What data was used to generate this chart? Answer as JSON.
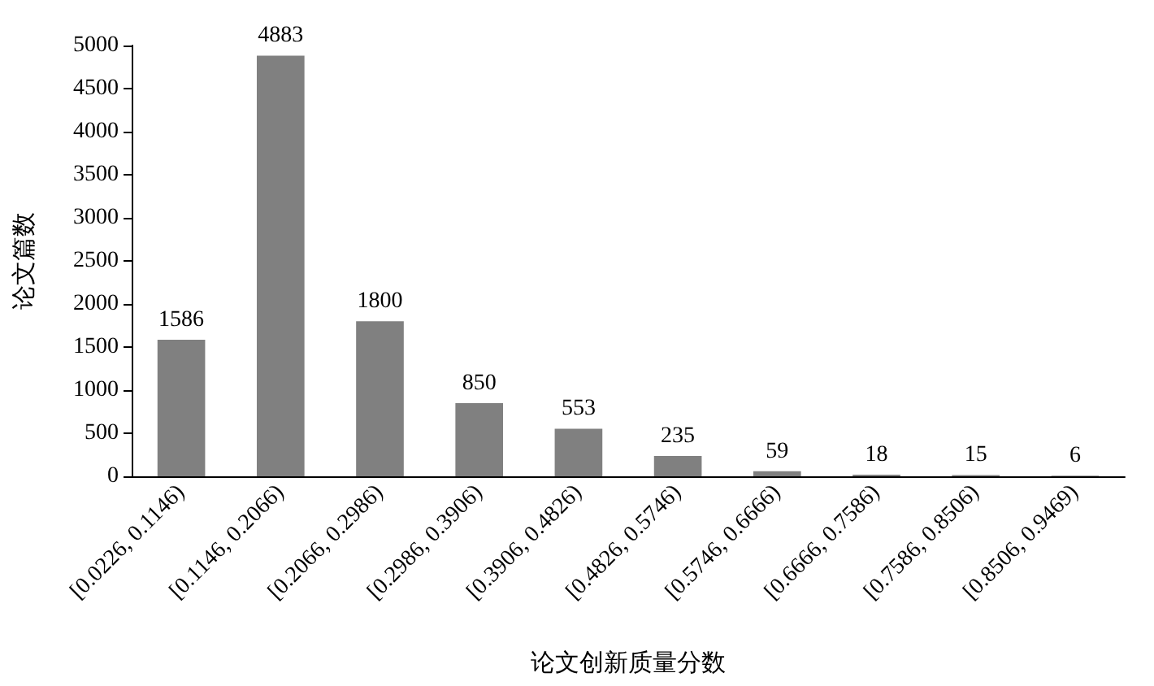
{
  "chart_data": {
    "type": "bar",
    "xlabel": "论文创新质量分数",
    "ylabel": "论文篇数",
    "categories": [
      "[0.0226, 0.1146)",
      "[0.1146, 0.2066)",
      "[0.2066, 0.2986)",
      "[0.2986, 0.3906)",
      "[0.3906, 0.4826)",
      "[0.4826, 0.5746)",
      "[0.5746, 0.6666)",
      "[0.6666, 0.7586)",
      "[0.7586, 0.8506)",
      "[0.8506, 0.9469)"
    ],
    "values": [
      1586,
      4883,
      1800,
      850,
      553,
      235,
      59,
      18,
      15,
      6
    ],
    "color": "#808080",
    "ylim": [
      0,
      5000
    ],
    "yticks": [
      0,
      500,
      1000,
      1500,
      2000,
      2500,
      3000,
      3500,
      4000,
      4500,
      5000
    ],
    "grid": false,
    "data_labels": true
  }
}
